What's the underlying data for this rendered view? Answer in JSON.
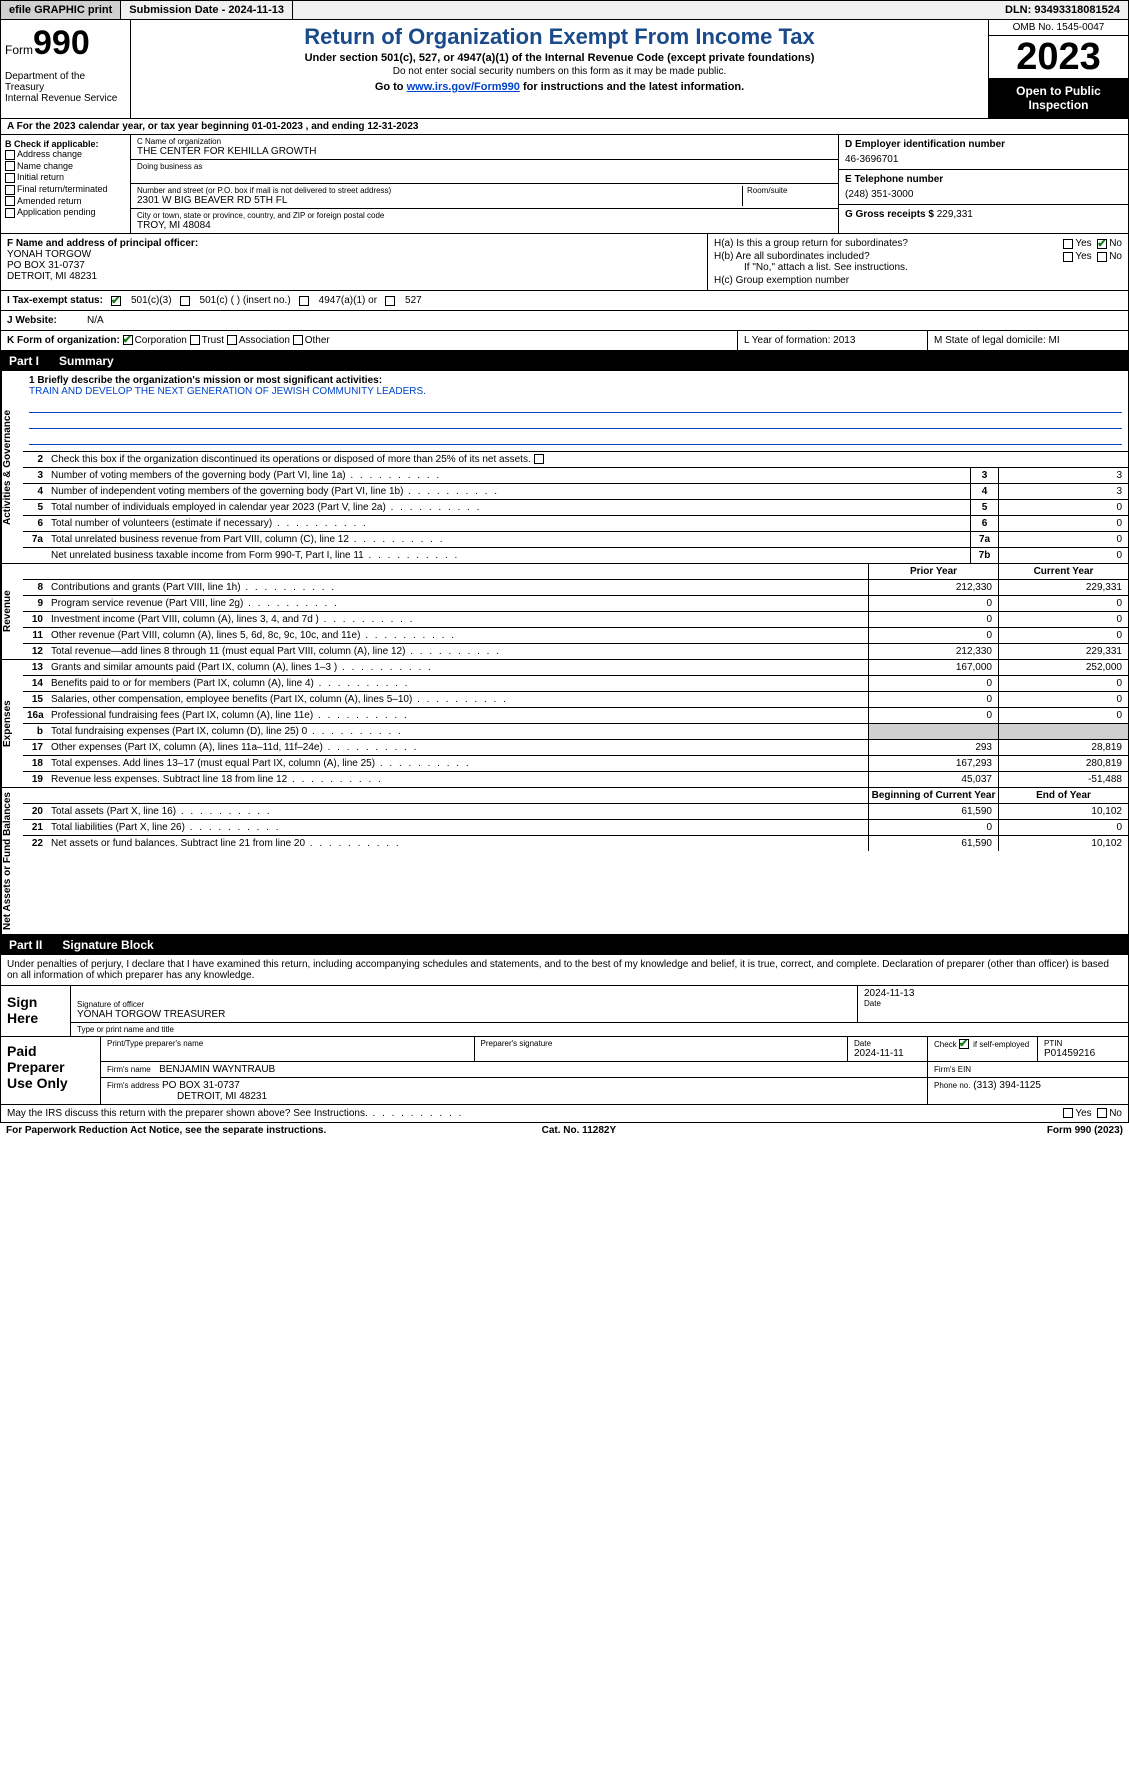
{
  "topbar": {
    "efile": "efile GRAPHIC print",
    "submission": "Submission Date - 2024-11-13",
    "dln": "DLN: 93493318081524"
  },
  "header": {
    "form_prefix": "Form",
    "form_number": "990",
    "dept": "Department of the Treasury",
    "irs": "Internal Revenue Service",
    "title": "Return of Organization Exempt From Income Tax",
    "sub": "Under section 501(c), 527, or 4947(a)(1) of the Internal Revenue Code (except private foundations)",
    "sub2": "Do not enter social security numbers on this form as it may be made public.",
    "goto_pre": "Go to ",
    "goto_link": "www.irs.gov/Form990",
    "goto_post": " for instructions and the latest information.",
    "omb": "OMB No. 1545-0047",
    "year": "2023",
    "open": "Open to Public Inspection"
  },
  "section_a": "A For the 2023 calendar year, or tax year beginning 01-01-2023   , and ending 12-31-2023",
  "col_b": {
    "heading": "B Check if applicable:",
    "items": [
      "Address change",
      "Name change",
      "Initial return",
      "Final return/terminated",
      "Amended return",
      "Application pending"
    ]
  },
  "col_c": {
    "name_lbl": "C Name of organization",
    "name": "THE CENTER FOR KEHILLA GROWTH",
    "dba_lbl": "Doing business as",
    "addr_lbl": "Number and street (or P.O. box if mail is not delivered to street address)",
    "room_lbl": "Room/suite",
    "addr": "2301 W BIG BEAVER RD 5TH FL",
    "city_lbl": "City or town, state or province, country, and ZIP or foreign postal code",
    "city": "TROY, MI  48084"
  },
  "col_d": {
    "ein_lbl": "D Employer identification number",
    "ein": "46-3696701",
    "tel_lbl": "E Telephone number",
    "tel": "(248) 351-3000",
    "gross_lbl": "G Gross receipts $ ",
    "gross": "229,331"
  },
  "row_f": {
    "lbl": "F  Name and address of principal officer:",
    "name": "YONAH TORGOW",
    "addr1": "PO BOX 31-0737",
    "addr2": "DETROIT, MI  48231"
  },
  "row_h": {
    "ha": "H(a)  Is this a group return for subordinates?",
    "hb": "H(b)  Are all subordinates included?",
    "hb_note": "If \"No,\" attach a list. See instructions.",
    "hc": "H(c)  Group exemption number"
  },
  "row_i": {
    "lbl": "I   Tax-exempt status:",
    "o1": "501(c)(3)",
    "o2": "501(c) (  ) (insert no.)",
    "o3": "4947(a)(1) or",
    "o4": "527"
  },
  "row_j": {
    "lbl": "J   Website:",
    "val": "N/A"
  },
  "row_k": {
    "lbl": "K Form of organization:",
    "o1": "Corporation",
    "o2": "Trust",
    "o3": "Association",
    "o4": "Other"
  },
  "row_l": "L Year of formation: 2013",
  "row_m": "M State of legal domicile: MI",
  "part1": {
    "num": "Part I",
    "title": "Summary"
  },
  "summary": {
    "vtabs": [
      "Activities & Governance",
      "Revenue",
      "Expenses",
      "Net Assets or Fund Balances"
    ],
    "mission_lbl": "1   Briefly describe the organization's mission or most significant activities:",
    "mission": "TRAIN AND DEVELOP THE NEXT GENERATION OF JEWISH COMMUNITY LEADERS.",
    "line2": "Check this box         if the organization discontinued its operations or disposed of more than 25% of its net assets.",
    "gov_lines": [
      {
        "n": "3",
        "d": "Number of voting members of the governing body (Part VI, line 1a)",
        "b": "3",
        "v": "3"
      },
      {
        "n": "4",
        "d": "Number of independent voting members of the governing body (Part VI, line 1b)",
        "b": "4",
        "v": "3"
      },
      {
        "n": "5",
        "d": "Total number of individuals employed in calendar year 2023 (Part V, line 2a)",
        "b": "5",
        "v": "0"
      },
      {
        "n": "6",
        "d": "Total number of volunteers (estimate if necessary)",
        "b": "6",
        "v": "0"
      },
      {
        "n": "7a",
        "d": "Total unrelated business revenue from Part VIII, column (C), line 12",
        "b": "7a",
        "v": "0"
      },
      {
        "n": "",
        "d": "Net unrelated business taxable income from Form 990-T, Part I, line 11",
        "b": "7b",
        "v": "0"
      }
    ],
    "col_headers": {
      "prior": "Prior Year",
      "current": "Current Year",
      "beg": "Beginning of Current Year",
      "end": "End of Year"
    },
    "rev_lines": [
      {
        "n": "8",
        "d": "Contributions and grants (Part VIII, line 1h)",
        "p": "212,330",
        "c": "229,331"
      },
      {
        "n": "9",
        "d": "Program service revenue (Part VIII, line 2g)",
        "p": "0",
        "c": "0"
      },
      {
        "n": "10",
        "d": "Investment income (Part VIII, column (A), lines 3, 4, and 7d )",
        "p": "0",
        "c": "0"
      },
      {
        "n": "11",
        "d": "Other revenue (Part VIII, column (A), lines 5, 6d, 8c, 9c, 10c, and 11e)",
        "p": "0",
        "c": "0"
      },
      {
        "n": "12",
        "d": "Total revenue—add lines 8 through 11 (must equal Part VIII, column (A), line 12)",
        "p": "212,330",
        "c": "229,331"
      }
    ],
    "exp_lines": [
      {
        "n": "13",
        "d": "Grants and similar amounts paid (Part IX, column (A), lines 1–3 )",
        "p": "167,000",
        "c": "252,000"
      },
      {
        "n": "14",
        "d": "Benefits paid to or for members (Part IX, column (A), line 4)",
        "p": "0",
        "c": "0"
      },
      {
        "n": "15",
        "d": "Salaries, other compensation, employee benefits (Part IX, column (A), lines 5–10)",
        "p": "0",
        "c": "0"
      },
      {
        "n": "16a",
        "d": "Professional fundraising fees (Part IX, column (A), line 11e)",
        "p": "0",
        "c": "0"
      },
      {
        "n": "b",
        "d": "Total fundraising expenses (Part IX, column (D), line 25) 0",
        "p": "",
        "c": "",
        "shade": true
      },
      {
        "n": "17",
        "d": "Other expenses (Part IX, column (A), lines 11a–11d, 11f–24e)",
        "p": "293",
        "c": "28,819"
      },
      {
        "n": "18",
        "d": "Total expenses. Add lines 13–17 (must equal Part IX, column (A), line 25)",
        "p": "167,293",
        "c": "280,819"
      },
      {
        "n": "19",
        "d": "Revenue less expenses. Subtract line 18 from line 12",
        "p": "45,037",
        "c": "-51,488"
      }
    ],
    "net_lines how------": [],
    "net_lines": [
      {
        "n": "20",
        "d": "Total assets (Part X, line 16)",
        "p": "61,590",
        "c": "10,102"
      },
      {
        "n": "21",
        "d": "Total liabilities (Part X, line 26)",
        "p": "0",
        "c": "0"
      },
      {
        "n": "22",
        "d": "Net assets or fund balances. Subtract line 21 from line 20",
        "p": "61,590",
        "c": "10,102"
      }
    ]
  },
  "part2": {
    "num": "Part II",
    "title": "Signature Block"
  },
  "sig_text": "Under penalties of perjury, I declare that I have examined this return, including accompanying schedules and statements, and to the best of my knowledge and belief, it is true, correct, and complete. Declaration of preparer (other than officer) is based on all information of which preparer has any knowledge.",
  "sign_here": {
    "lbl": "Sign Here",
    "sig_lbl": "Signature of officer",
    "officer": "YONAH TORGOW  TREASURER",
    "type_lbl": "Type or print name and title",
    "date_lbl": "Date",
    "date": "2024-11-13"
  },
  "paid": {
    "lbl": "Paid Preparer Use Only",
    "prep_name_lbl": "Print/Type preparer's name",
    "prep_sig_lbl": "Preparer's signature",
    "date_lbl": "Date",
    "date": "2024-11-11",
    "check_lbl": "Check         if self-employed",
    "ptin_lbl": "PTIN",
    "ptin": "P01459216",
    "firm_name_lbl": "Firm's name",
    "firm_name": "BENJAMIN WAYNTRAUB",
    "firm_ein_lbl": "Firm's EIN",
    "firm_addr_lbl": "Firm's address",
    "firm_addr1": "PO BOX 31-0737",
    "firm_addr2": "DETROIT, MI  48231",
    "phone_lbl": "Phone no.",
    "phone": "(313) 394-1125"
  },
  "discuss": "May the IRS discuss this return with the preparer shown above? See Instructions.",
  "footer": {
    "left": "For Paperwork Reduction Act Notice, see the separate instructions.",
    "mid": "Cat. No. 11282Y",
    "right": "Form 990 (2023)"
  },
  "yes": "Yes",
  "no": "No"
}
